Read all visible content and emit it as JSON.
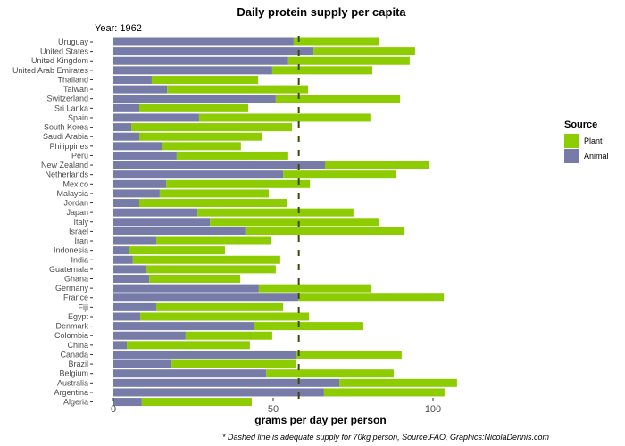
{
  "chart_data": {
    "type": "bar",
    "orientation": "horizontal",
    "stacked": true,
    "title": "Daily protein supply per capita",
    "subtitle": "Year: 1962",
    "xlabel": "grams per day per person",
    "ylabel": "",
    "caption": "* Dashed line is adequate supply for 70kg person, Source:FAO, Graphics:NicolaDennis.com",
    "xlim": [
      0,
      110
    ],
    "xticks": [
      0,
      50,
      100
    ],
    "xtick_labels": [
      "0",
      "50",
      "100"
    ],
    "grid": false,
    "reference_line": {
      "value": 58,
      "style": "dashed",
      "color": "#3a4a0a"
    },
    "legend": {
      "title": "Source",
      "position": "right",
      "entries": [
        {
          "name": "Plant",
          "color": "#8ccc00"
        },
        {
          "name": "Animal",
          "color": "#777ba8"
        }
      ]
    },
    "categories": [
      "Uruguay",
      "United States",
      "United Kingdom",
      "United Arab Emirates",
      "Thailand",
      "Taiwan",
      "Switzerland",
      "Sri Lanka",
      "Spain",
      "South Korea",
      "Saudi Arabia",
      "Philippines",
      "Peru",
      "New Zealand",
      "Netherlands",
      "Mexico",
      "Malaysia",
      "Jordan",
      "Japan",
      "Italy",
      "Israel",
      "Iran",
      "Indonesia",
      "India",
      "Guatemala",
      "Ghana",
      "Germany",
      "France",
      "Fiji",
      "Egypt",
      "Denmark",
      "Colombia",
      "China",
      "Canada",
      "Brazil",
      "Belgium",
      "Australia",
      "Argentina",
      "Algeria"
    ],
    "series": [
      {
        "name": "Animal",
        "color": "#777ba8",
        "values": [
          56.4,
          62.6,
          54.7,
          49.7,
          12.0,
          16.8,
          50.8,
          8.1,
          26.8,
          5.6,
          8.1,
          15.1,
          19.8,
          66.2,
          53.1,
          16.5,
          14.5,
          8.1,
          26.3,
          30.2,
          41.3,
          13.4,
          5.0,
          6.1,
          10.3,
          11.2,
          45.5,
          57.8,
          13.4,
          8.4,
          44.1,
          22.6,
          4.2,
          57.0,
          18.2,
          47.8,
          70.7,
          65.9,
          8.9
        ]
      },
      {
        "name": "Plant",
        "color": "#8ccc00",
        "values": [
          26.8,
          31.8,
          38.0,
          31.3,
          33.3,
          44.1,
          38.9,
          34.1,
          53.6,
          50.3,
          38.5,
          24.8,
          34.9,
          32.7,
          35.4,
          45.0,
          34.1,
          46.1,
          48.8,
          52.8,
          49.8,
          35.8,
          29.9,
          46.1,
          40.5,
          28.5,
          35.2,
          45.6,
          39.7,
          52.8,
          34.1,
          27.1,
          38.5,
          33.2,
          38.8,
          39.9,
          36.8,
          37.7,
          34.4
        ]
      }
    ]
  }
}
